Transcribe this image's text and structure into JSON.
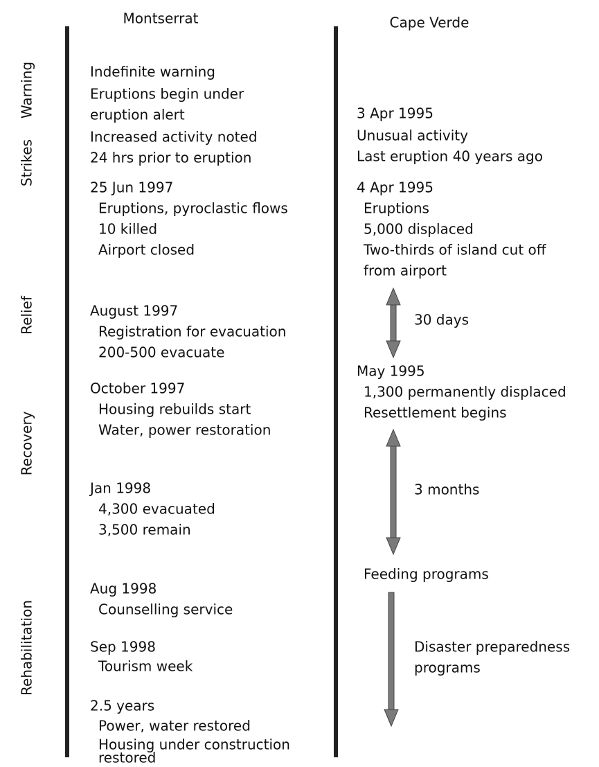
{
  "headers": {
    "left": "Montserrat",
    "right": "Cape Verde"
  },
  "phases": [
    "Warning",
    "Strikes",
    "Relief",
    "Recovery",
    "Rehabilitation"
  ],
  "montserrat": {
    "warning": [
      "Indefinite warning",
      "Eruptions begin under",
      "eruption alert",
      "Increased activity noted",
      "24 hrs prior to eruption"
    ],
    "events": [
      {
        "date": "25 Jun 1997",
        "details": [
          "Eruptions, pyroclastic flows",
          "10 killed",
          "Airport closed"
        ]
      },
      {
        "date": "August 1997",
        "details": [
          "Registration for evacuation",
          "200-500 evacuate"
        ]
      },
      {
        "date": "October 1997",
        "details": [
          "Housing rebuilds start",
          "Water, power restoration"
        ]
      },
      {
        "date": "Jan 1998",
        "details": [
          "4,300 evacuated",
          "3,500 remain"
        ]
      },
      {
        "date": "Aug 1998",
        "details": [
          "Counselling service"
        ]
      },
      {
        "date": "Sep 1998",
        "details": [
          "Tourism week"
        ]
      },
      {
        "date": "2.5 years",
        "details": [
          "Power, water restored",
          "Housing under construction",
          "restored"
        ]
      }
    ]
  },
  "cape_verde": {
    "events": [
      {
        "date": "3 Apr 1995",
        "details": [
          "Unusual activity",
          "Last eruption 40 years ago"
        ]
      },
      {
        "date": "4 Apr 1995",
        "details": [
          "Eruptions",
          "5,000 displaced",
          "Two-thirds of island cut off",
          "from airport"
        ]
      },
      {
        "date": "May 1995",
        "details": [
          "1,300 permanently displaced",
          "Resettlement begins"
        ]
      }
    ],
    "feeding": "Feeding programs",
    "arrows": [
      {
        "label": [
          "30 days"
        ]
      },
      {
        "label": [
          "3 months"
        ]
      },
      {
        "label": [
          "Disaster preparedness",
          "programs"
        ]
      }
    ]
  }
}
